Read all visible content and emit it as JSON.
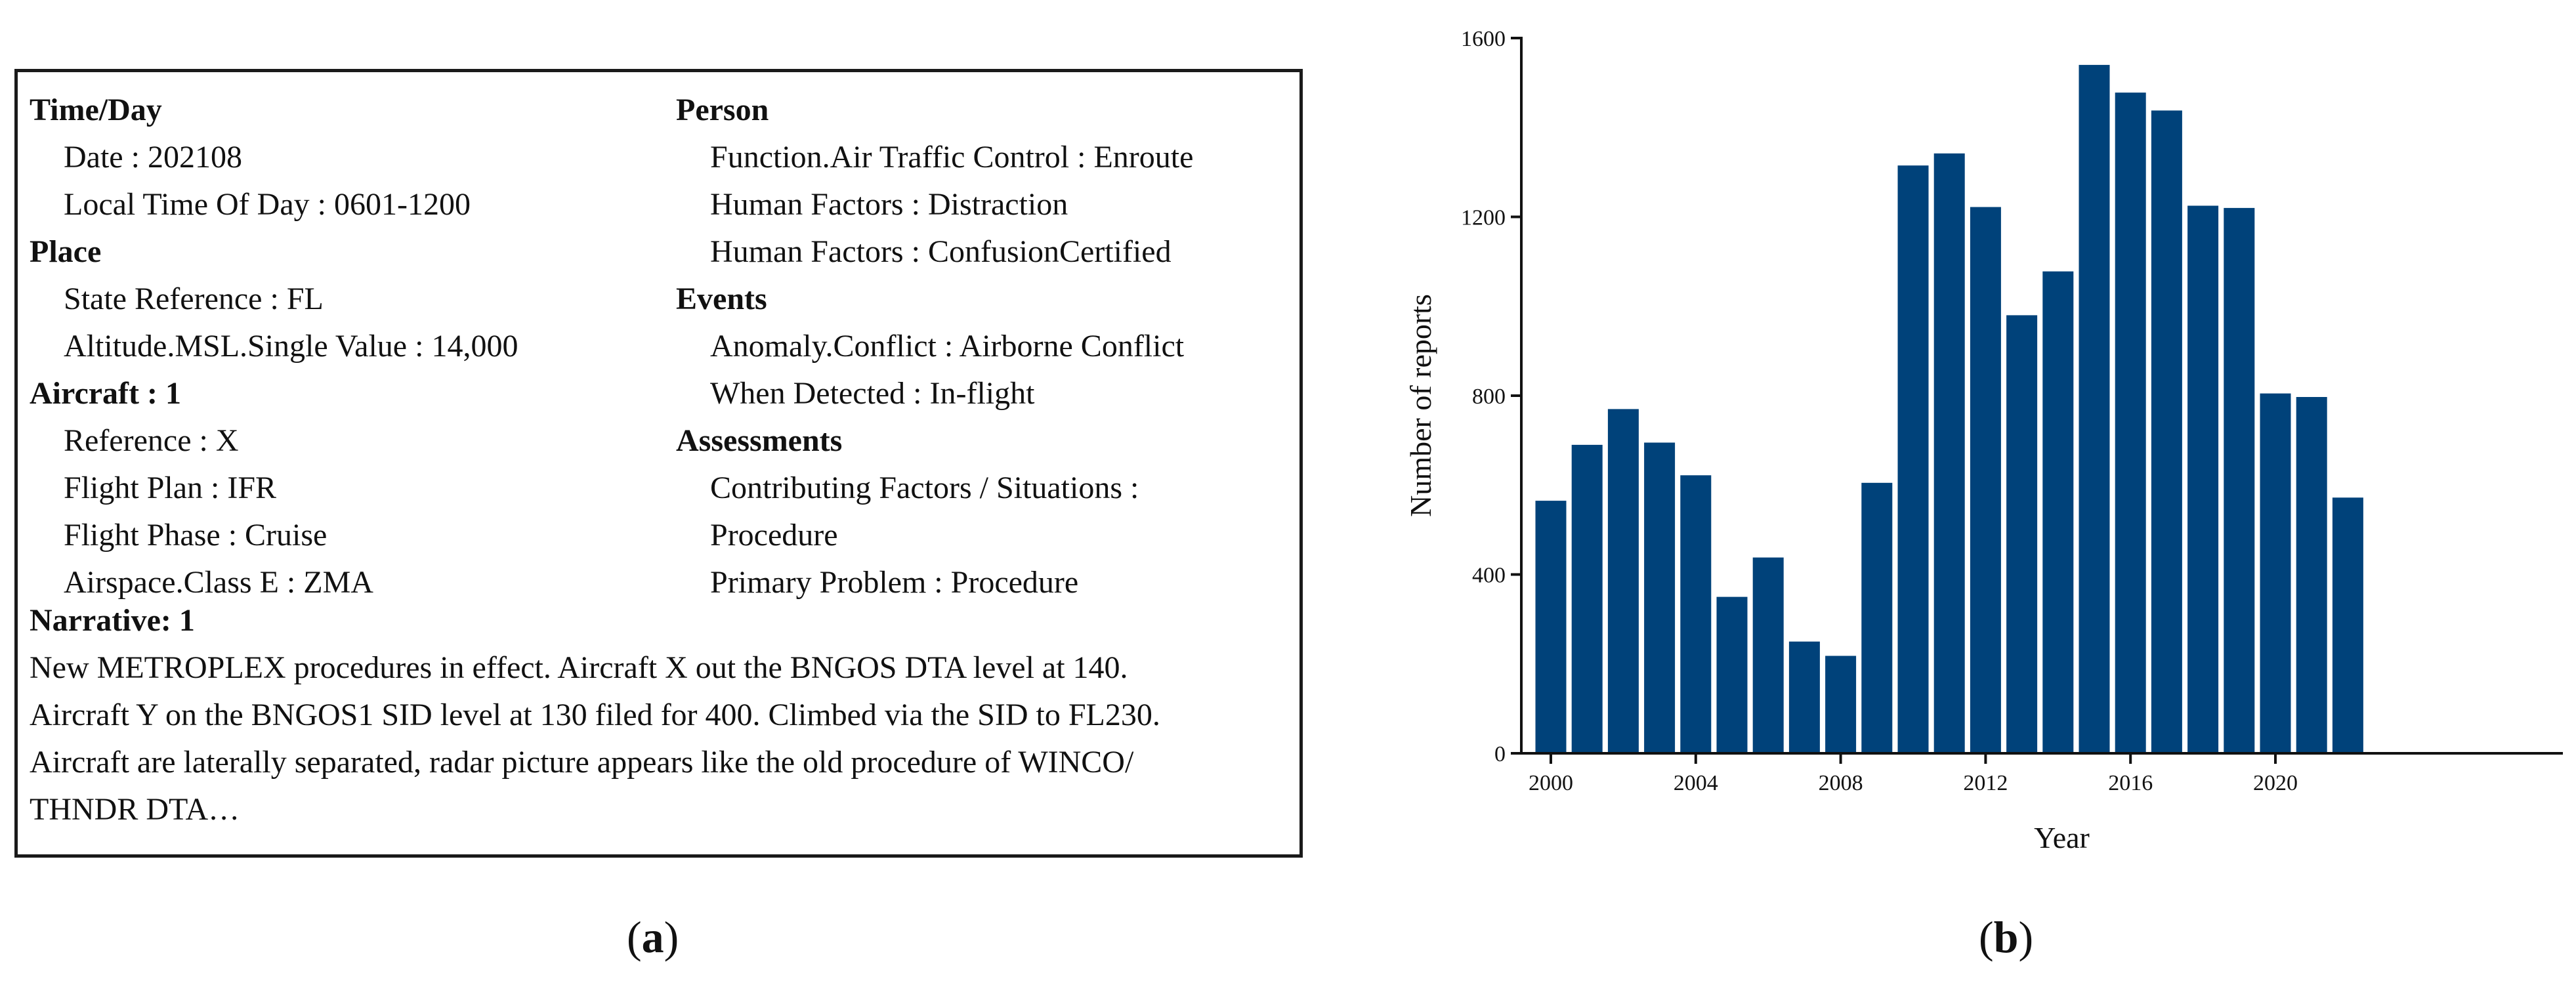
{
  "report": {
    "left": [
      {
        "text": "Time/Day",
        "heading": true
      },
      {
        "text": "Date : 202108",
        "heading": false
      },
      {
        "text": "Local Time Of Day : 0601-1200",
        "heading": false
      },
      {
        "text": "Place",
        "heading": true
      },
      {
        "text": "State Reference : FL",
        "heading": false
      },
      {
        "text": "Altitude.MSL.Single Value : 14,000",
        "heading": false
      },
      {
        "text": "Aircraft : 1",
        "heading": true
      },
      {
        "text": "Reference : X",
        "heading": false
      },
      {
        "text": "Flight Plan : IFR",
        "heading": false
      },
      {
        "text": "Flight Phase : Cruise",
        "heading": false
      },
      {
        "text": "Airspace.Class E : ZMA",
        "heading": false
      }
    ],
    "right": [
      {
        "text": "Person",
        "heading": true
      },
      {
        "text": "Function.Air Traffic Control : Enroute",
        "heading": false
      },
      {
        "text": "Human Factors : Distraction",
        "heading": false
      },
      {
        "text": "Human Factors : ConfusionCertified",
        "heading": false
      },
      {
        "text": "Events",
        "heading": true
      },
      {
        "text": "Anomaly.Conflict : Airborne Conflict",
        "heading": false
      },
      {
        "text": "When Detected : In-flight",
        "heading": false
      },
      {
        "text": "Assessments",
        "heading": true
      },
      {
        "text": "Contributing Factors / Situations :",
        "heading": false
      },
      {
        "text": "Procedure",
        "heading": false
      },
      {
        "text": "Primary Problem : Procedure",
        "heading": false
      }
    ],
    "narrative_heading": "Narrative: 1",
    "narrative_text": "New METROPLEX procedures in effect. Aircraft X out the BNGOS DTA level at 140.\nAircraft Y on the BNGOS1 SID level at 130 filed for 400. Climbed via the SID to FL230.\nAircraft are laterally separated, radar picture appears like the old procedure of WINCO/\nTHNDR DTA…"
  },
  "captions": {
    "a": {
      "open": "(",
      "letter": "a",
      "close": ")"
    },
    "b": {
      "open": "(",
      "letter": "b",
      "close": ")"
    }
  },
  "chart_data": {
    "type": "bar",
    "categories": [
      "2000",
      "2001",
      "2002",
      "2003",
      "2004",
      "2005",
      "2006",
      "2007",
      "2008",
      "2009",
      "2010",
      "2011",
      "2012",
      "2013",
      "2014",
      "2015",
      "2016",
      "2017",
      "2018",
      "2019",
      "2020",
      "2021",
      "2022"
    ],
    "values": [
      565,
      690,
      770,
      695,
      622,
      350,
      438,
      250,
      218,
      605,
      1315,
      1342,
      1222,
      980,
      1078,
      1540,
      1478,
      1438,
      1225,
      1220,
      805,
      797,
      572
    ],
    "ylim": [
      0,
      1600
    ],
    "yticks": [
      0,
      400,
      800,
      1200,
      1600
    ],
    "xticks": [
      "2000",
      "2004",
      "2008",
      "2012",
      "2016",
      "2020"
    ],
    "xlabel": "Year",
    "ylabel": "Number of reports",
    "bar_color": "#00427A",
    "grid": false
  }
}
